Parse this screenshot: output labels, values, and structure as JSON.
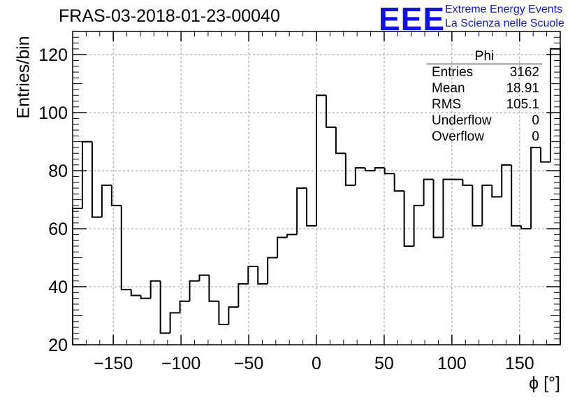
{
  "title": "FRAS-03-2018-01-23-00040",
  "logo": {
    "mark": "EEE",
    "line1": "Extreme Energy Events",
    "line2": "La Scienza nelle Scuole",
    "color": "#1010ee"
  },
  "stats_box": {
    "name": "Phi",
    "rows": [
      {
        "label": "Entries",
        "value": "3162"
      },
      {
        "label": "Mean",
        "value": "18.91"
      },
      {
        "label": "RMS",
        "value": "105.1"
      },
      {
        "label": "Underflow",
        "value": "0"
      },
      {
        "label": "Overflow",
        "value": "0"
      }
    ]
  },
  "chart_data": {
    "type": "bar",
    "style": "step-histogram",
    "title": "FRAS-03-2018-01-23-00040",
    "xlabel": "ϕ [°]",
    "ylabel": "Entries/bin",
    "xlim": [
      -180,
      180
    ],
    "ylim": [
      20,
      128
    ],
    "xticks": [
      -150,
      -100,
      -50,
      0,
      50,
      100,
      150
    ],
    "yticks": [
      20,
      40,
      60,
      80,
      100,
      120
    ],
    "grid": true,
    "bin_width": 7.2,
    "values": [
      67,
      90,
      64,
      75,
      68,
      39,
      37,
      36,
      42,
      24,
      31,
      35,
      42,
      44,
      35,
      27,
      33,
      41,
      47,
      41,
      50,
      57,
      58,
      74,
      61,
      106,
      95,
      86,
      75,
      81,
      80,
      81,
      79,
      73,
      54,
      68,
      77,
      57,
      77,
      77,
      75,
      61,
      75,
      71,
      82,
      61,
      60,
      88,
      83,
      122
    ],
    "line_color": "#000000"
  }
}
